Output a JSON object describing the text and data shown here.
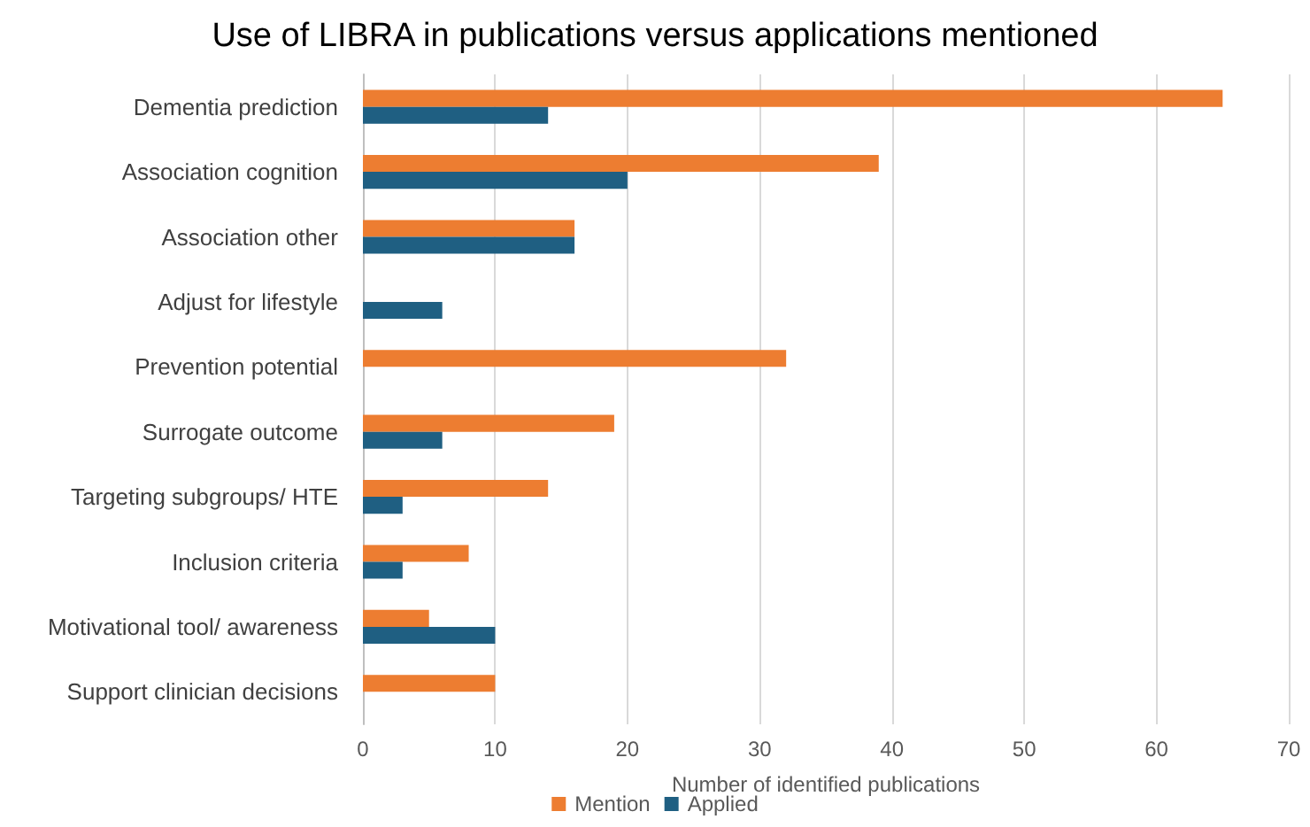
{
  "chart_data": {
    "type": "bar",
    "orientation": "horizontal",
    "title": "Use of LIBRA in publications versus applications mentioned",
    "xlabel": "Number of identified publications",
    "categories": [
      "Dementia prediction",
      "Association cognition",
      "Association other",
      "Adjust for lifestyle",
      "Prevention potential",
      "Surrogate outcome",
      "Targeting subgroups/ HTE",
      "Inclusion criteria",
      "Motivational tool/ awareness",
      "Support clinician decisions"
    ],
    "series": [
      {
        "name": "Mention",
        "color": "#ed7d31",
        "values": [
          65,
          39,
          16,
          0,
          32,
          19,
          14,
          8,
          5,
          10
        ]
      },
      {
        "name": "Applied",
        "color": "#1f5f82",
        "values": [
          14,
          20,
          16,
          6,
          0,
          6,
          3,
          3,
          10,
          0
        ]
      }
    ],
    "xlim": [
      0,
      70
    ],
    "xticks": [
      0,
      10,
      20,
      30,
      40,
      50,
      60,
      70
    ],
    "grid": "x",
    "legend": "bottom"
  }
}
